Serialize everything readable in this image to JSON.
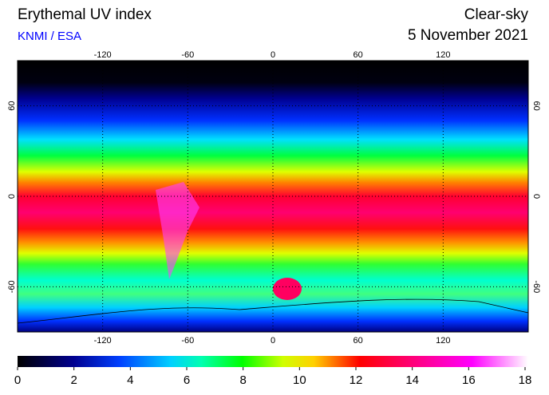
{
  "header": {
    "title": "Erythemal UV index",
    "source": "KNMI / ESA",
    "condition": "Clear-sky",
    "date": "5 November 2021"
  },
  "map": {
    "lon_range": [
      -180,
      180
    ],
    "lat_range": [
      -90,
      90
    ],
    "lon_ticks": [
      -120,
      -60,
      0,
      60,
      120
    ],
    "lat_ticks": [
      60,
      0,
      -60
    ]
  },
  "colorbar": {
    "ticks": [
      0,
      2,
      4,
      6,
      8,
      10,
      12,
      14,
      16,
      18
    ]
  }
}
